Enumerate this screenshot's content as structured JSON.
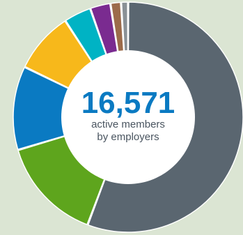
{
  "center": {
    "value": "16,571",
    "line1": "active members",
    "line2": "by employers"
  },
  "colors": {
    "background": "#dbe5d3",
    "hole": "#ffffff",
    "value_text": "#0a7ac2"
  },
  "chart_data": {
    "type": "pie",
    "donut": true,
    "title": "",
    "legend": "none",
    "slices": [
      {
        "value": 56.3,
        "color": "#5a6670"
      },
      {
        "value": 14.8,
        "color": "#5ea51d"
      },
      {
        "value": 11.9,
        "color": "#0a7ac2"
      },
      {
        "value": 8.7,
        "color": "#f7b81b"
      },
      {
        "value": 3.9,
        "color": "#00b3c4"
      },
      {
        "value": 2.9,
        "color": "#7a2b90"
      },
      {
        "value": 1.5,
        "color": "#9c6b4a"
      },
      {
        "value": 1.0,
        "color": "#8a9196"
      }
    ]
  }
}
